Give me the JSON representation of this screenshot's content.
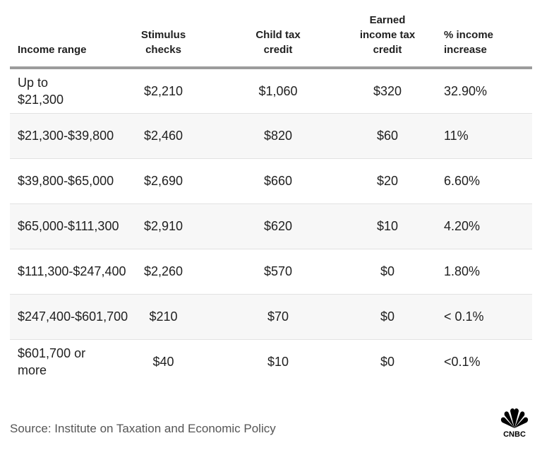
{
  "chart_data": {
    "type": "table",
    "columns": [
      "Income range",
      "Stimulus checks",
      "Child tax credit",
      "Earned income tax credit",
      "% income increase"
    ],
    "rows": [
      [
        "Up to $21,300",
        "$2,210",
        "$1,060",
        "$320",
        "32.90%"
      ],
      [
        "$21,300-$39,800",
        "$2,460",
        "$820",
        "$60",
        "11%"
      ],
      [
        "$39,800-$65,000",
        "$2,690",
        "$660",
        "$20",
        "6.60%"
      ],
      [
        "$65,000-$111,300",
        "$2,910",
        "$620",
        "$10",
        "4.20%"
      ],
      [
        "$111,300-$247,400",
        "$2,260",
        "$570",
        "$0",
        "1.80%"
      ],
      [
        "$247,400-$601,700",
        "$210",
        "$70",
        "$0",
        "< 0.1%"
      ],
      [
        "$601,700 or more",
        "$40",
        "$10",
        "$0",
        "<0.1%"
      ]
    ]
  },
  "source": "Source: Institute on Taxation and Economic Policy",
  "logo": {
    "icon": "cnbc-peacock-icon",
    "text": "CNBC",
    "color": "#000000"
  }
}
